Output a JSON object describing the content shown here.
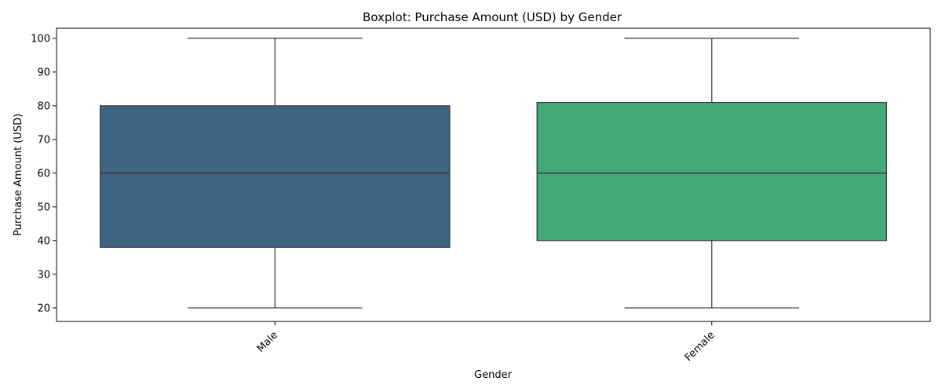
{
  "chart_data": {
    "type": "boxplot",
    "title": "Boxplot: Purchase Amount (USD) by Gender",
    "xlabel": "Gender",
    "ylabel": "Purchase Amount (USD)",
    "ylim": [
      16,
      103
    ],
    "yticks": [
      20,
      30,
      40,
      50,
      60,
      70,
      80,
      90,
      100
    ],
    "grid": false,
    "categories": [
      "Male",
      "Female"
    ],
    "boxes": [
      {
        "category": "Male",
        "min": 20,
        "q1": 38,
        "median": 60,
        "q3": 80,
        "max": 100,
        "color": "#3e6683"
      },
      {
        "category": "Female",
        "min": 20,
        "q1": 40,
        "median": 60,
        "q3": 81,
        "max": 100,
        "color": "#45a878"
      }
    ]
  }
}
